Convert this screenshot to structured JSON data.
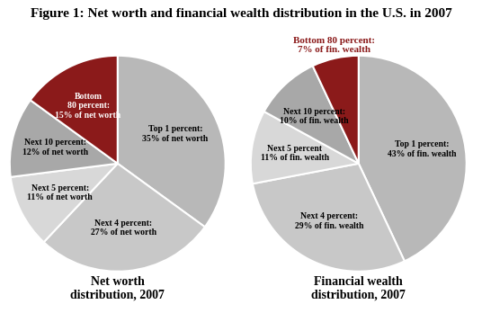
{
  "title": "Figure 1: Net worth and financial wealth distribution in the U.S. in 2007",
  "chart_data": [
    {
      "type": "pie",
      "title": "Net worth\ndistribution, 2007",
      "categories": [
        "Top 1 percent:\n35% of net worth",
        "Next 4 percent:\n27% of net worth",
        "Next 5 percent:\n11% of net worth",
        "Next 10 percent:\n12% of net worth",
        "Bottom\n80 percent:\n15% of net worth"
      ],
      "values": [
        35,
        27,
        11,
        12,
        15
      ],
      "colors": [
        "#b8b8b8",
        "#c8c8c8",
        "#d8d8d8",
        "#a8a8a8",
        "#8b1a1a"
      ]
    },
    {
      "type": "pie",
      "title": "Financial wealth\ndistribution, 2007",
      "categories": [
        "Top 1 percent:\n43% of fin. wealth",
        "Next 4 percent:\n29% of fin. wealth",
        "Next 5 percent\n11% of fin. wealth",
        "Next 10 percent:\n10% of fin. wealth",
        "Bottom 80 percent:\n7% of fin. wealth"
      ],
      "values": [
        43,
        29,
        11,
        10,
        7
      ],
      "colors": [
        "#b8b8b8",
        "#c8c8c8",
        "#d8d8d8",
        "#a8a8a8",
        "#8b1a1a"
      ]
    }
  ]
}
